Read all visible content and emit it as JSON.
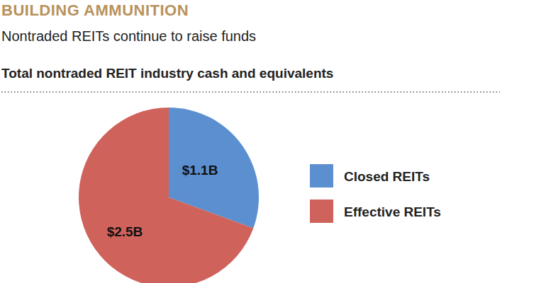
{
  "chart_data": {
    "type": "pie",
    "title": "BUILDING AMMUNITION",
    "subtitle": "Nontraded REITs continue to raise funds",
    "annotations": [
      "Total nontraded REIT industry cash and equivalents"
    ],
    "categories": [
      "Closed REITs",
      "Effective REITs"
    ],
    "values": [
      1.1,
      2.5
    ],
    "value_labels": [
      "$1.1B",
      "$2.5B"
    ],
    "colors": [
      "#5b8fcf",
      "#d0625c"
    ],
    "data_labels": true,
    "legend": "right"
  }
}
